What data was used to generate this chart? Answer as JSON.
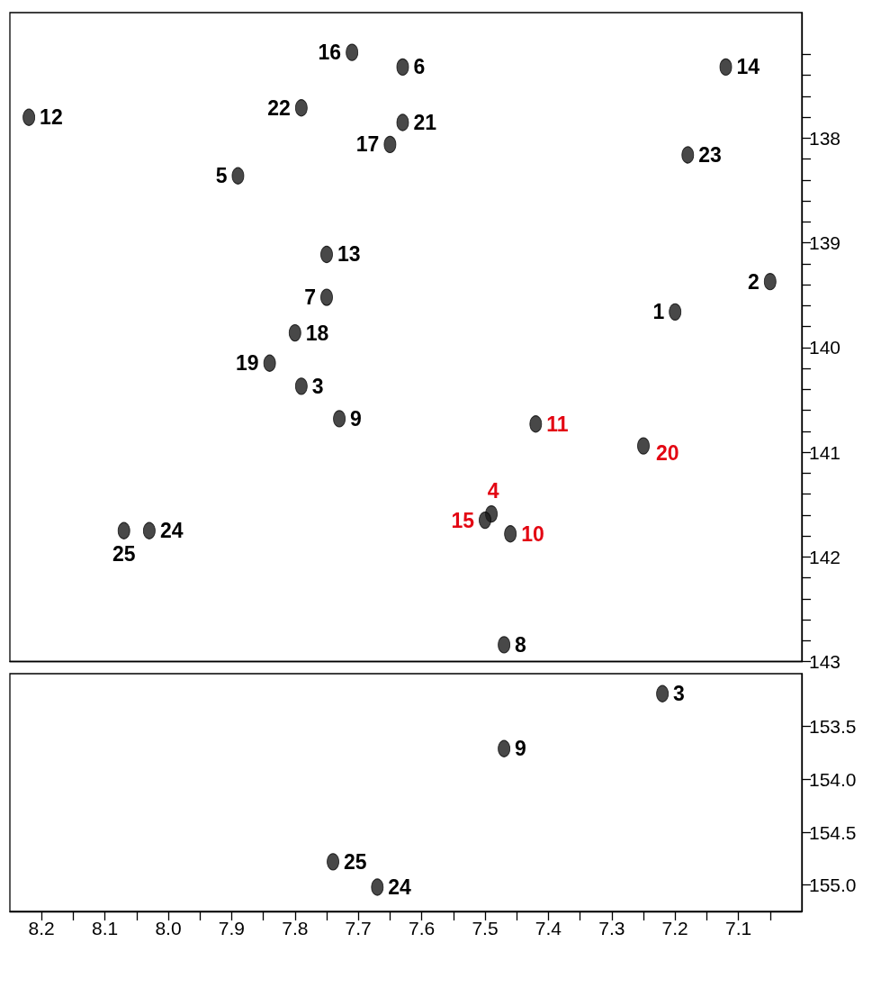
{
  "chart_data": [
    {
      "type": "scatter",
      "marker": "circle",
      "tick_labels": "y",
      "xlim": [
        8.25,
        7.0
      ],
      "ylim": [
        143,
        136.8
      ],
      "yticks": [
        {
          "value": 137.2,
          "label": null
        },
        {
          "value": 137.4,
          "label": null
        },
        {
          "value": 137.6,
          "label": null
        },
        {
          "value": 137.8,
          "label": null
        },
        138,
        {
          "value": 138.2,
          "label": null
        },
        {
          "value": 138.4,
          "label": null
        },
        {
          "value": 138.6,
          "label": null
        },
        {
          "value": 138.8,
          "label": null
        },
        139,
        {
          "value": 139.2,
          "label": null
        },
        {
          "value": 139.4,
          "label": null
        },
        {
          "value": 139.6,
          "label": null
        },
        {
          "value": 139.8,
          "label": null
        },
        140,
        {
          "value": 140.2,
          "label": null
        },
        {
          "value": 140.4,
          "label": null
        },
        {
          "value": 140.6,
          "label": null
        },
        {
          "value": 140.8,
          "label": null
        },
        141,
        {
          "value": 141.2,
          "label": null
        },
        {
          "value": 141.4,
          "label": null
        },
        {
          "value": 141.6,
          "label": null
        },
        {
          "value": 141.8,
          "label": null
        },
        142,
        {
          "value": 142.2,
          "label": null
        },
        {
          "value": 142.4,
          "label": null
        },
        {
          "value": 142.6,
          "label": null
        },
        {
          "value": 142.8,
          "label": null
        },
        143
      ],
      "series": [
        {
          "color": "#1a1a1a",
          "x": [
            7.71,
            7.63,
            7.79,
            8.22,
            7.63,
            7.65,
            7.89,
            7.75,
            7.75,
            7.12,
            7.18,
            7.05,
            7.2,
            7.8,
            7.84,
            7.79,
            7.73,
            8.07,
            8.03,
            7.47,
            7.42,
            7.25,
            7.49,
            7.5,
            7.46
          ],
          "values": [
            137.18,
            137.32,
            137.71,
            137.8,
            137.85,
            138.06,
            138.36,
            139.11,
            139.52,
            137.32,
            138.16,
            139.37,
            139.66,
            139.86,
            140.15,
            140.37,
            140.68,
            141.75,
            141.75,
            142.84,
            140.73,
            140.94,
            141.59,
            141.65,
            141.78
          ]
        }
      ],
      "annotations": [
        {
          "text": "16",
          "x": 7.71,
          "y": 137.18
        },
        {
          "text": "6",
          "x": 7.63,
          "y": 137.32
        },
        {
          "text": "22",
          "x": 7.79,
          "y": 137.71
        },
        {
          "text": "12",
          "x": 8.22,
          "y": 137.8
        },
        {
          "text": "21",
          "x": 7.63,
          "y": 137.85
        },
        {
          "text": "17",
          "x": 7.65,
          "y": 138.06
        },
        {
          "text": "5",
          "x": 7.89,
          "y": 138.36
        },
        {
          "text": "13",
          "x": 7.75,
          "y": 139.11
        },
        {
          "text": "7",
          "x": 7.75,
          "y": 139.52
        },
        {
          "text": "14",
          "x": 7.12,
          "y": 137.32
        },
        {
          "text": "23",
          "x": 7.18,
          "y": 138.16
        },
        {
          "text": "2",
          "x": 7.05,
          "y": 139.37
        },
        {
          "text": "1",
          "x": 7.2,
          "y": 139.66
        },
        {
          "text": "18",
          "x": 7.8,
          "y": 139.86
        },
        {
          "text": "19",
          "x": 7.84,
          "y": 140.15
        },
        {
          "text": "3",
          "x": 7.79,
          "y": 140.37
        },
        {
          "text": "9",
          "x": 7.73,
          "y": 140.68
        },
        {
          "text": "25",
          "x": 8.07,
          "y": 141.75
        },
        {
          "text": "24",
          "x": 8.03,
          "y": 141.75
        },
        {
          "text": "8",
          "x": 7.47,
          "y": 142.84
        },
        {
          "text": "11",
          "x": 7.42,
          "y": 140.73
        },
        {
          "text": "20",
          "x": 7.25,
          "y": 140.94
        },
        {
          "text": "4",
          "x": 7.49,
          "y": 141.59
        },
        {
          "text": "15",
          "x": 7.5,
          "y": 141.65
        },
        {
          "text": "10",
          "x": 7.46,
          "y": 141.78
        }
      ]
    },
    {
      "type": "scatter",
      "marker": "circle",
      "xlim": [
        8.25,
        7.0
      ],
      "ylim": [
        155.25,
        153.0
      ],
      "xticks": [
        8.2,
        {
          "value": 8.15,
          "label": null
        },
        8.1,
        {
          "value": 8.05,
          "label": null
        },
        {
          "value": 8.0,
          "label": "8.0"
        },
        {
          "value": 7.95,
          "label": null
        },
        7.9,
        {
          "value": 7.85,
          "label": null
        },
        7.8,
        {
          "value": 7.75,
          "label": null
        },
        7.7,
        {
          "value": 7.65,
          "label": null
        },
        7.6,
        {
          "value": 7.55,
          "label": null
        },
        7.5,
        {
          "value": 7.45,
          "label": null
        },
        7.4,
        {
          "value": 7.35,
          "label": null
        },
        7.3,
        {
          "value": 7.25,
          "label": null
        },
        7.2,
        {
          "value": 7.15,
          "label": null
        },
        7.1,
        {
          "value": 7.05,
          "label": null
        }
      ],
      "yticks": [
        153.5,
        {
          "value": 154,
          "label": "154.0"
        },
        154.5,
        {
          "value": 155,
          "label": "155.0"
        }
      ],
      "series": [
        {
          "color": "#1a1a1a",
          "x": [
            7.22,
            7.47,
            7.74,
            7.67
          ],
          "values": [
            153.19,
            153.71,
            154.78,
            155.02
          ]
        }
      ],
      "annotations": [
        {
          "text": "3",
          "x": 7.22,
          "y": 153.19
        },
        {
          "text": "9",
          "x": 7.47,
          "y": 153.71
        },
        {
          "text": "25",
          "x": 7.74,
          "y": 154.78
        },
        {
          "text": "24",
          "x": 7.67,
          "y": 155.02
        }
      ]
    }
  ]
}
